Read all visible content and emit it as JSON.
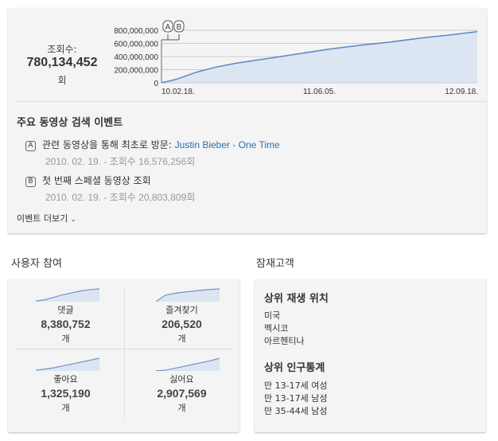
{
  "stats": {
    "views_label": "조회수:",
    "views_value": "780,134,452",
    "views_unit": "회",
    "markers": [
      "A",
      "B"
    ]
  },
  "chart_data": {
    "type": "area",
    "y_ticks": [
      "800,000,000",
      "600,000,000",
      "400,000,000",
      "200,000,000",
      "0"
    ],
    "x_ticks": [
      "10.02.18.",
      "11.06.05.",
      "12.09.18."
    ],
    "ylim": [
      0,
      800000000
    ],
    "xlim": [
      "2010-02-18",
      "2012-09-18"
    ],
    "grid": true,
    "color": "#5b86c5",
    "fill": "#dce6f2",
    "points": [
      [
        "2010-02-18",
        0
      ],
      [
        "2010-04-01",
        50000000
      ],
      [
        "2010-06-01",
        160000000
      ],
      [
        "2010-08-01",
        240000000
      ],
      [
        "2010-10-01",
        300000000
      ],
      [
        "2011-01-01",
        370000000
      ],
      [
        "2011-04-01",
        440000000
      ],
      [
        "2011-07-01",
        510000000
      ],
      [
        "2011-10-01",
        570000000
      ],
      [
        "2012-01-01",
        620000000
      ],
      [
        "2012-04-01",
        680000000
      ],
      [
        "2012-07-01",
        730000000
      ],
      [
        "2012-09-18",
        780000000
      ]
    ],
    "annotations": [
      {
        "label": "A",
        "date": "2010-02-19"
      },
      {
        "label": "B",
        "date": "2010-02-19"
      }
    ]
  },
  "events": {
    "title": "주요 동영상 검색 이벤트",
    "items": [
      {
        "badge": "A",
        "text": "관련 동영상을 통해 최초로 방문: ",
        "link": "Justin Bieber - One Time",
        "sub": "2010. 02. 19. - 조회수 16,576,256회"
      },
      {
        "badge": "B",
        "text": "첫 번째 스페셜 동영상 조회",
        "link": "",
        "sub": "2010. 02. 19. - 조회수 20,803,809회"
      }
    ],
    "more": "이벤트 더보기"
  },
  "engagement": {
    "title": "사용자 참여",
    "items": [
      {
        "label": "댓글",
        "value": "8,380,752",
        "unit": "개",
        "trend": [
          0.05,
          0.15,
          0.35,
          0.55,
          0.7,
          0.85,
          0.95,
          1
        ]
      },
      {
        "label": "즐겨찾기",
        "value": "206,520",
        "unit": "개",
        "trend": [
          0,
          0.5,
          0.65,
          0.75,
          0.82,
          0.9,
          0.96,
          1
        ]
      },
      {
        "label": "좋아요",
        "value": "1,325,190",
        "unit": "개",
        "trend": [
          0.05,
          0.15,
          0.25,
          0.4,
          0.55,
          0.7,
          0.85,
          1
        ]
      },
      {
        "label": "싫어요",
        "value": "2,907,569",
        "unit": "개",
        "trend": [
          0.02,
          0.05,
          0.2,
          0.35,
          0.5,
          0.65,
          0.8,
          1
        ]
      }
    ]
  },
  "audience": {
    "title": "잠재고객",
    "locations_title": "상위 재생 위치",
    "locations": [
      "미국",
      "멕시코",
      "아르헨티나"
    ],
    "demographics_title": "상위 인구통계",
    "demographics": [
      "만 13-17세 여성",
      "만 13-17세 남성",
      "만 35-44세 남성"
    ]
  }
}
